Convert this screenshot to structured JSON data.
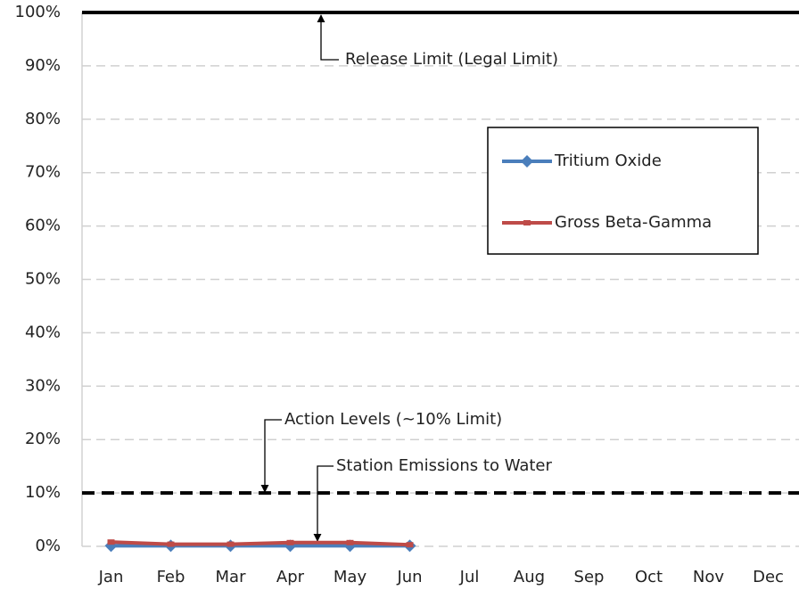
{
  "chart_data": {
    "type": "line",
    "categories": [
      "Jan",
      "Feb",
      "Mar",
      "Apr",
      "May",
      "Jun",
      "Jul",
      "Aug",
      "Sep",
      "Oct",
      "Nov",
      "Dec"
    ],
    "series": [
      {
        "name": "Tritium Oxide",
        "color": "#4a7ebb",
        "marker": "diamond",
        "values": [
          0.1,
          0.1,
          0.1,
          0.1,
          0.1,
          0.1,
          null,
          null,
          null,
          null,
          null,
          null
        ]
      },
      {
        "name": "Gross Beta-Gamma",
        "color": "#be4b48",
        "marker": "square",
        "values": [
          0.8,
          0.4,
          0.4,
          0.7,
          0.7,
          0.3,
          null,
          null,
          null,
          null,
          null,
          null
        ]
      }
    ],
    "ylim": [
      0,
      100
    ],
    "yticks": [
      {
        "value": 0,
        "label": "0%"
      },
      {
        "value": 10,
        "label": "10%"
      },
      {
        "value": 20,
        "label": "20%"
      },
      {
        "value": 30,
        "label": "30%"
      },
      {
        "value": 40,
        "label": "40%"
      },
      {
        "value": 50,
        "label": "50%"
      },
      {
        "value": 60,
        "label": "60%"
      },
      {
        "value": 70,
        "label": "70%"
      },
      {
        "value": 80,
        "label": "80%"
      },
      {
        "value": 90,
        "label": "90%"
      },
      {
        "value": 100,
        "label": "100%"
      }
    ],
    "grid": true,
    "reference_lines": [
      {
        "value": 100,
        "style": "solid"
      },
      {
        "value": 10,
        "style": "dashed"
      }
    ],
    "annotations": [
      "Release Limit (Legal Limit)",
      "Action Levels (~10% Limit)",
      "Station Emissions to Water"
    ]
  }
}
